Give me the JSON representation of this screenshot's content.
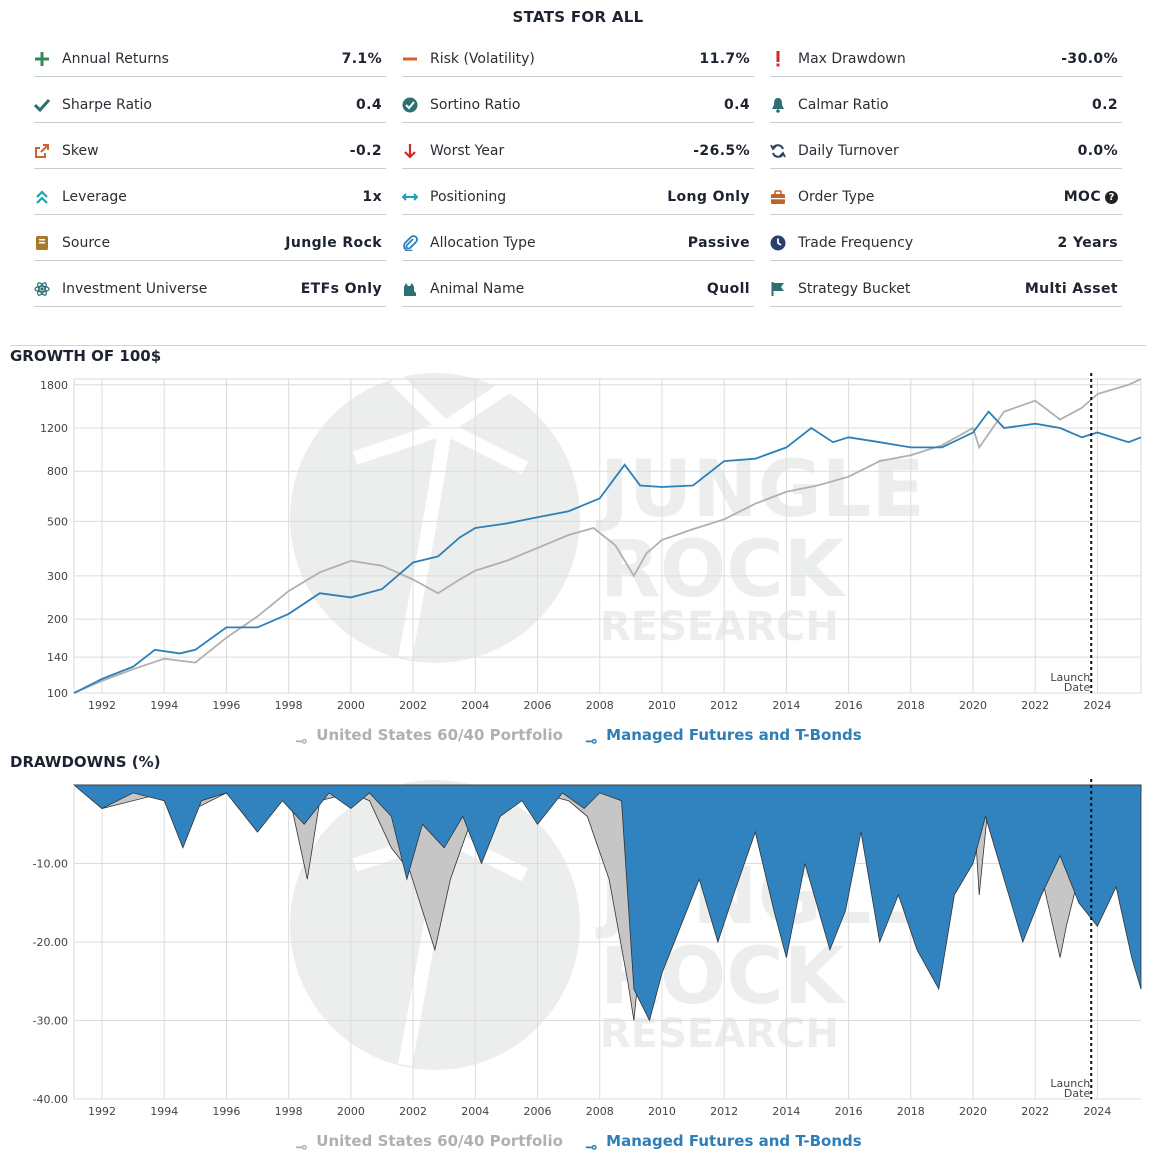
{
  "stats": {
    "title": "STATS FOR ALL",
    "items": [
      {
        "label": "Annual Returns",
        "value": "7.1%",
        "icon": "plus-icon",
        "color": "#2f8a57"
      },
      {
        "label": "Risk (Volatility)",
        "value": "11.7%",
        "icon": "minus-icon",
        "color": "#d2642a"
      },
      {
        "label": "Max Drawdown",
        "value": "-30.0%",
        "icon": "exclamation-icon",
        "color": "#cc2b2b"
      },
      {
        "label": "Sharpe Ratio",
        "value": "0.4",
        "icon": "check-icon",
        "color": "#2d6f73"
      },
      {
        "label": "Sortino Ratio",
        "value": "0.4",
        "icon": "check-circle-icon",
        "color": "#2d6f73"
      },
      {
        "label": "Calmar Ratio",
        "value": "0.2",
        "icon": "bell-icon",
        "color": "#2d6f73"
      },
      {
        "label": "Skew",
        "value": "-0.2",
        "icon": "external-link-icon",
        "color": "#d2642a"
      },
      {
        "label": "Worst Year",
        "value": "-26.5%",
        "icon": "arrow-down-icon",
        "color": "#cc2b2b"
      },
      {
        "label": "Daily Turnover",
        "value": "0.0%",
        "icon": "refresh-icon",
        "color": "#2a3f6b"
      },
      {
        "label": "Leverage",
        "value": "1x",
        "icon": "chevrons-up-icon",
        "color": "#1aa3b0"
      },
      {
        "label": "Positioning",
        "value": "Long Only",
        "icon": "arrows-horizontal-icon",
        "color": "#1aa3b0"
      },
      {
        "label": "Order Type",
        "value": "MOC",
        "icon": "briefcase-icon",
        "color": "#c0622b"
      },
      {
        "label": "Source",
        "value": "Jungle Rock",
        "icon": "book-icon",
        "color": "#a97a2a"
      },
      {
        "label": "Allocation Type",
        "value": "Passive",
        "icon": "paperclip-icon",
        "color": "#2e7fb8"
      },
      {
        "label": "Trade Frequency",
        "value": "2 Years",
        "icon": "clock-icon",
        "color": "#2a3f6b"
      },
      {
        "label": "Investment Universe",
        "value": "ETFs Only",
        "icon": "atom-icon",
        "color": "#2d6f73"
      },
      {
        "label": "Animal Name",
        "value": "Quoll",
        "icon": "cat-icon",
        "color": "#2d6f73"
      },
      {
        "label": "Strategy Bucket",
        "value": "Multi Asset",
        "icon": "flag-icon",
        "color": "#2d6f73"
      }
    ],
    "help_glyph": "?"
  },
  "growth": {
    "title": "GROWTH OF 100$"
  },
  "drawdowns": {
    "title": "DRAWDOWNS (%)"
  },
  "watermark": {
    "line1": "JUNGLE",
    "line2": "ROCK",
    "line3": "RESEARCH"
  },
  "launch_label": {
    "line1": "Launch",
    "line2": "Date"
  },
  "legend": {
    "series_a": "United States 60/40 Portfolio",
    "series_b": "Managed Futures and T-Bonds"
  },
  "colors": {
    "series_a": "#b0b0b0",
    "series_b": "#2e7fb8",
    "grid": "#d9d9d9"
  },
  "chart_data": [
    {
      "type": "line",
      "title": "GROWTH OF 100$",
      "yscale": "log",
      "ylim": [
        100,
        1900
      ],
      "y_ticks": [
        100,
        140,
        200,
        300,
        500,
        800,
        1200,
        1800
      ],
      "xlim": [
        1991.1,
        2025.4
      ],
      "x_ticks": [
        1992,
        1994,
        1996,
        1998,
        2000,
        2002,
        2004,
        2006,
        2008,
        2010,
        2012,
        2014,
        2016,
        2018,
        2020,
        2022,
        2024
      ],
      "launch_date": 2023.8,
      "series": [
        {
          "name": "United States 60/40 Portfolio",
          "x": [
            1991.1,
            1992,
            1993,
            1994,
            1995,
            1996,
            1997,
            1998,
            1999,
            2000,
            2001,
            2002,
            2002.8,
            2003.5,
            2004,
            2005,
            2006,
            2007,
            2007.8,
            2008.5,
            2009.1,
            2009.5,
            2010,
            2011,
            2012,
            2013,
            2014,
            2015,
            2016,
            2017,
            2018,
            2019,
            2020,
            2020.2,
            2021,
            2022,
            2022.8,
            2023.5,
            2024,
            2025,
            2025.4
          ],
          "y": [
            100,
            112,
            125,
            138,
            133,
            168,
            205,
            260,
            310,
            345,
            330,
            290,
            255,
            290,
            315,
            345,
            390,
            440,
            470,
            400,
            300,
            370,
            420,
            465,
            510,
            590,
            660,
            700,
            760,
            880,
            930,
            1020,
            1200,
            1000,
            1400,
            1550,
            1300,
            1450,
            1650,
            1800,
            1900
          ]
        },
        {
          "name": "Managed Futures and T-Bonds",
          "x": [
            1991.1,
            1992,
            1993,
            1993.7,
            1994.5,
            1995,
            1996,
            1997,
            1998,
            1999,
            2000,
            2001,
            2002,
            2002.8,
            2003.5,
            2004,
            2005,
            2006,
            2007,
            2008,
            2008.8,
            2009.3,
            2010,
            2011,
            2012,
            2013,
            2014,
            2014.8,
            2015.5,
            2016,
            2017,
            2018,
            2019,
            2020,
            2020.5,
            2021,
            2022,
            2022.8,
            2023.5,
            2024,
            2025,
            2025.4
          ],
          "y": [
            100,
            114,
            128,
            150,
            145,
            150,
            185,
            185,
            210,
            255,
            245,
            265,
            340,
            360,
            430,
            470,
            490,
            520,
            550,
            620,
            850,
            700,
            690,
            700,
            880,
            900,
            1000,
            1200,
            1050,
            1100,
            1050,
            1000,
            1000,
            1150,
            1400,
            1200,
            1250,
            1200,
            1100,
            1150,
            1050,
            1100
          ]
        }
      ]
    },
    {
      "type": "area",
      "title": "DRAWDOWNS (%)",
      "ylim": [
        -40,
        0
      ],
      "y_ticks": [
        -10.0,
        -20.0,
        -30.0,
        -40.0
      ],
      "xlim": [
        1991.1,
        2025.4
      ],
      "x_ticks": [
        1992,
        1994,
        1996,
        1998,
        2000,
        2002,
        2004,
        2006,
        2008,
        2010,
        2012,
        2014,
        2016,
        2018,
        2020,
        2022,
        2024
      ],
      "launch_date": 2023.8,
      "series": [
        {
          "name": "United States 60/40 Portfolio",
          "x": [
            1991.1,
            1992,
            1994,
            1994.5,
            1996,
            1998,
            1998.6,
            1999,
            2000,
            2000.6,
            2001.3,
            2001.9,
            2002.7,
            2003.2,
            2004,
            2005,
            2006,
            2007,
            2007.6,
            2008.3,
            2008.9,
            2009.1,
            2009.4,
            2009.8,
            2010.5,
            2011,
            2011.7,
            2012,
            2013,
            2014,
            2015.5,
            2016,
            2018,
            2018.9,
            2019.2,
            2020,
            2020.2,
            2020.5,
            2021,
            2022,
            2022.8,
            2023,
            2023.5,
            2024,
            2025,
            2025.4
          ],
          "y": [
            0,
            -3,
            -1,
            -4,
            -1,
            -1,
            -12,
            -2,
            -1,
            -2,
            -8,
            -11,
            -21,
            -12,
            -3,
            -2,
            -1,
            -2,
            -4,
            -12,
            -25,
            -30,
            -18,
            -8,
            -6,
            -2,
            -8,
            -2,
            -1,
            -1,
            -4,
            -1,
            -2,
            -7,
            -1,
            -1,
            -14,
            -2,
            -1,
            -8,
            -22,
            -18,
            -10,
            -5,
            -2,
            -1
          ]
        },
        {
          "name": "Managed Futures and T-Bonds",
          "x": [
            1991.1,
            1992,
            1993,
            1994,
            1994.6,
            1995.2,
            1996,
            1997,
            1997.8,
            1998.5,
            1999.3,
            2000,
            2000.6,
            2001.3,
            2001.8,
            2002.3,
            2003,
            2003.6,
            2004.2,
            2004.8,
            2005.5,
            2006,
            2006.8,
            2007.5,
            2008,
            2008.7,
            2009.1,
            2009.6,
            2010,
            2010.6,
            2011.2,
            2011.8,
            2012.3,
            2013,
            2013.6,
            2014,
            2014.6,
            2015.4,
            2015.9,
            2016.4,
            2017,
            2017.6,
            2018.2,
            2018.9,
            2019.4,
            2020,
            2020.4,
            2021,
            2021.6,
            2022.2,
            2022.8,
            2023.4,
            2024,
            2024.6,
            2025.1,
            2025.4
          ],
          "y": [
            0,
            -3,
            -1,
            -2,
            -8,
            -2,
            -1,
            -6,
            -2,
            -5,
            -1,
            -3,
            -1,
            -4,
            -12,
            -5,
            -8,
            -4,
            -10,
            -4,
            -2,
            -5,
            -1,
            -3,
            -1,
            -2,
            -26,
            -30,
            -24,
            -18,
            -12,
            -20,
            -14,
            -6,
            -16,
            -22,
            -10,
            -21,
            -16,
            -6,
            -20,
            -14,
            -21,
            -26,
            -14,
            -10,
            -4,
            -12,
            -20,
            -14,
            -9,
            -15,
            -18,
            -13,
            -22,
            -26
          ]
        }
      ]
    }
  ]
}
